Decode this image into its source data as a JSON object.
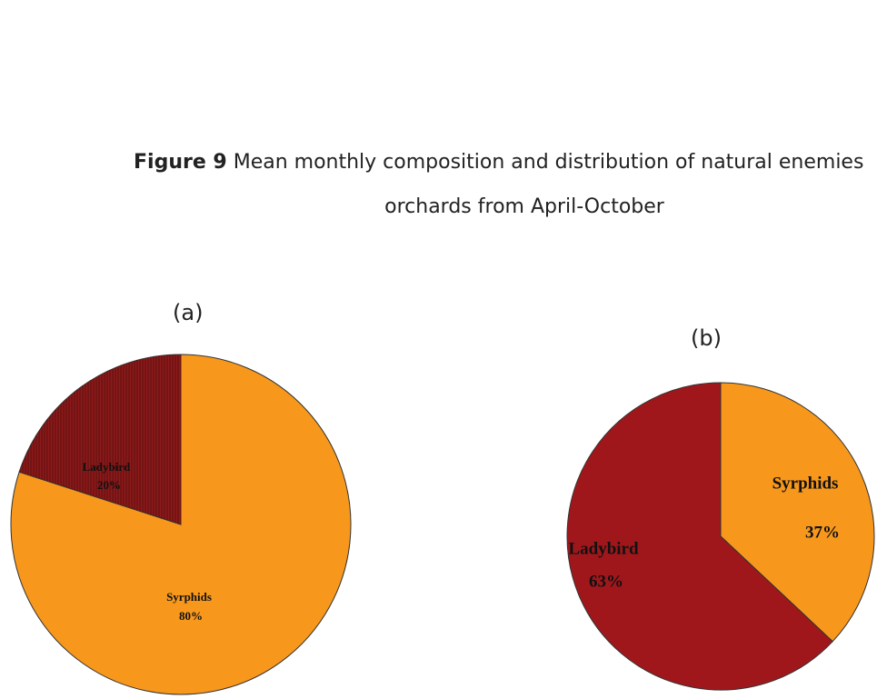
{
  "caption": {
    "label": "Figure 9",
    "lines": [
      "Mean monthly composition and distribution of natural enemies",
      "orchards from April-October"
    ]
  },
  "chart_data": [
    {
      "type": "pie",
      "title": "(a)",
      "categories": [
        "Syrphids",
        "Ladybird"
      ],
      "values": [
        80,
        20
      ],
      "value_labels": [
        "80%",
        "20%"
      ],
      "colors": [
        "#f7981d",
        "#8e1a1a"
      ]
    },
    {
      "type": "pie",
      "title": "(b)",
      "categories": [
        "Syrphids",
        "Ladybird"
      ],
      "values": [
        37,
        63
      ],
      "value_labels": [
        "37%",
        "63%"
      ],
      "colors": [
        "#f7981d",
        "#a0171b"
      ]
    }
  ]
}
